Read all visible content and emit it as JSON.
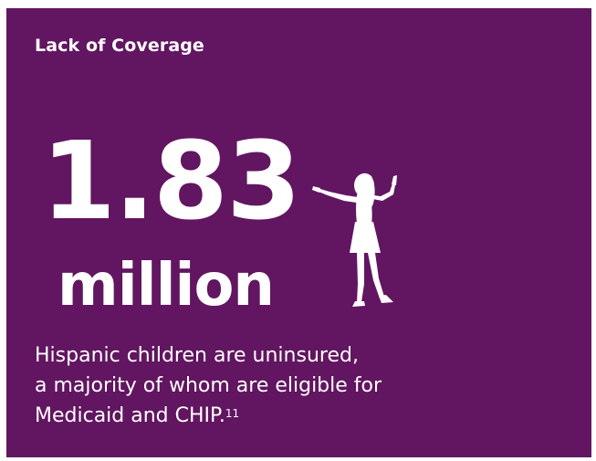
{
  "heading": "Lack of Coverage",
  "stat": {
    "number": "1.83",
    "unit": "million"
  },
  "caption": {
    "line1": "Hispanic children are uninsured,",
    "line2": "a majority of whom are eligible for",
    "line3": "Medicaid and CHIP.",
    "footnote": "11"
  },
  "icon": "child-silhouette-icon",
  "colors": {
    "background": "#621560",
    "text": "#ffffff"
  }
}
